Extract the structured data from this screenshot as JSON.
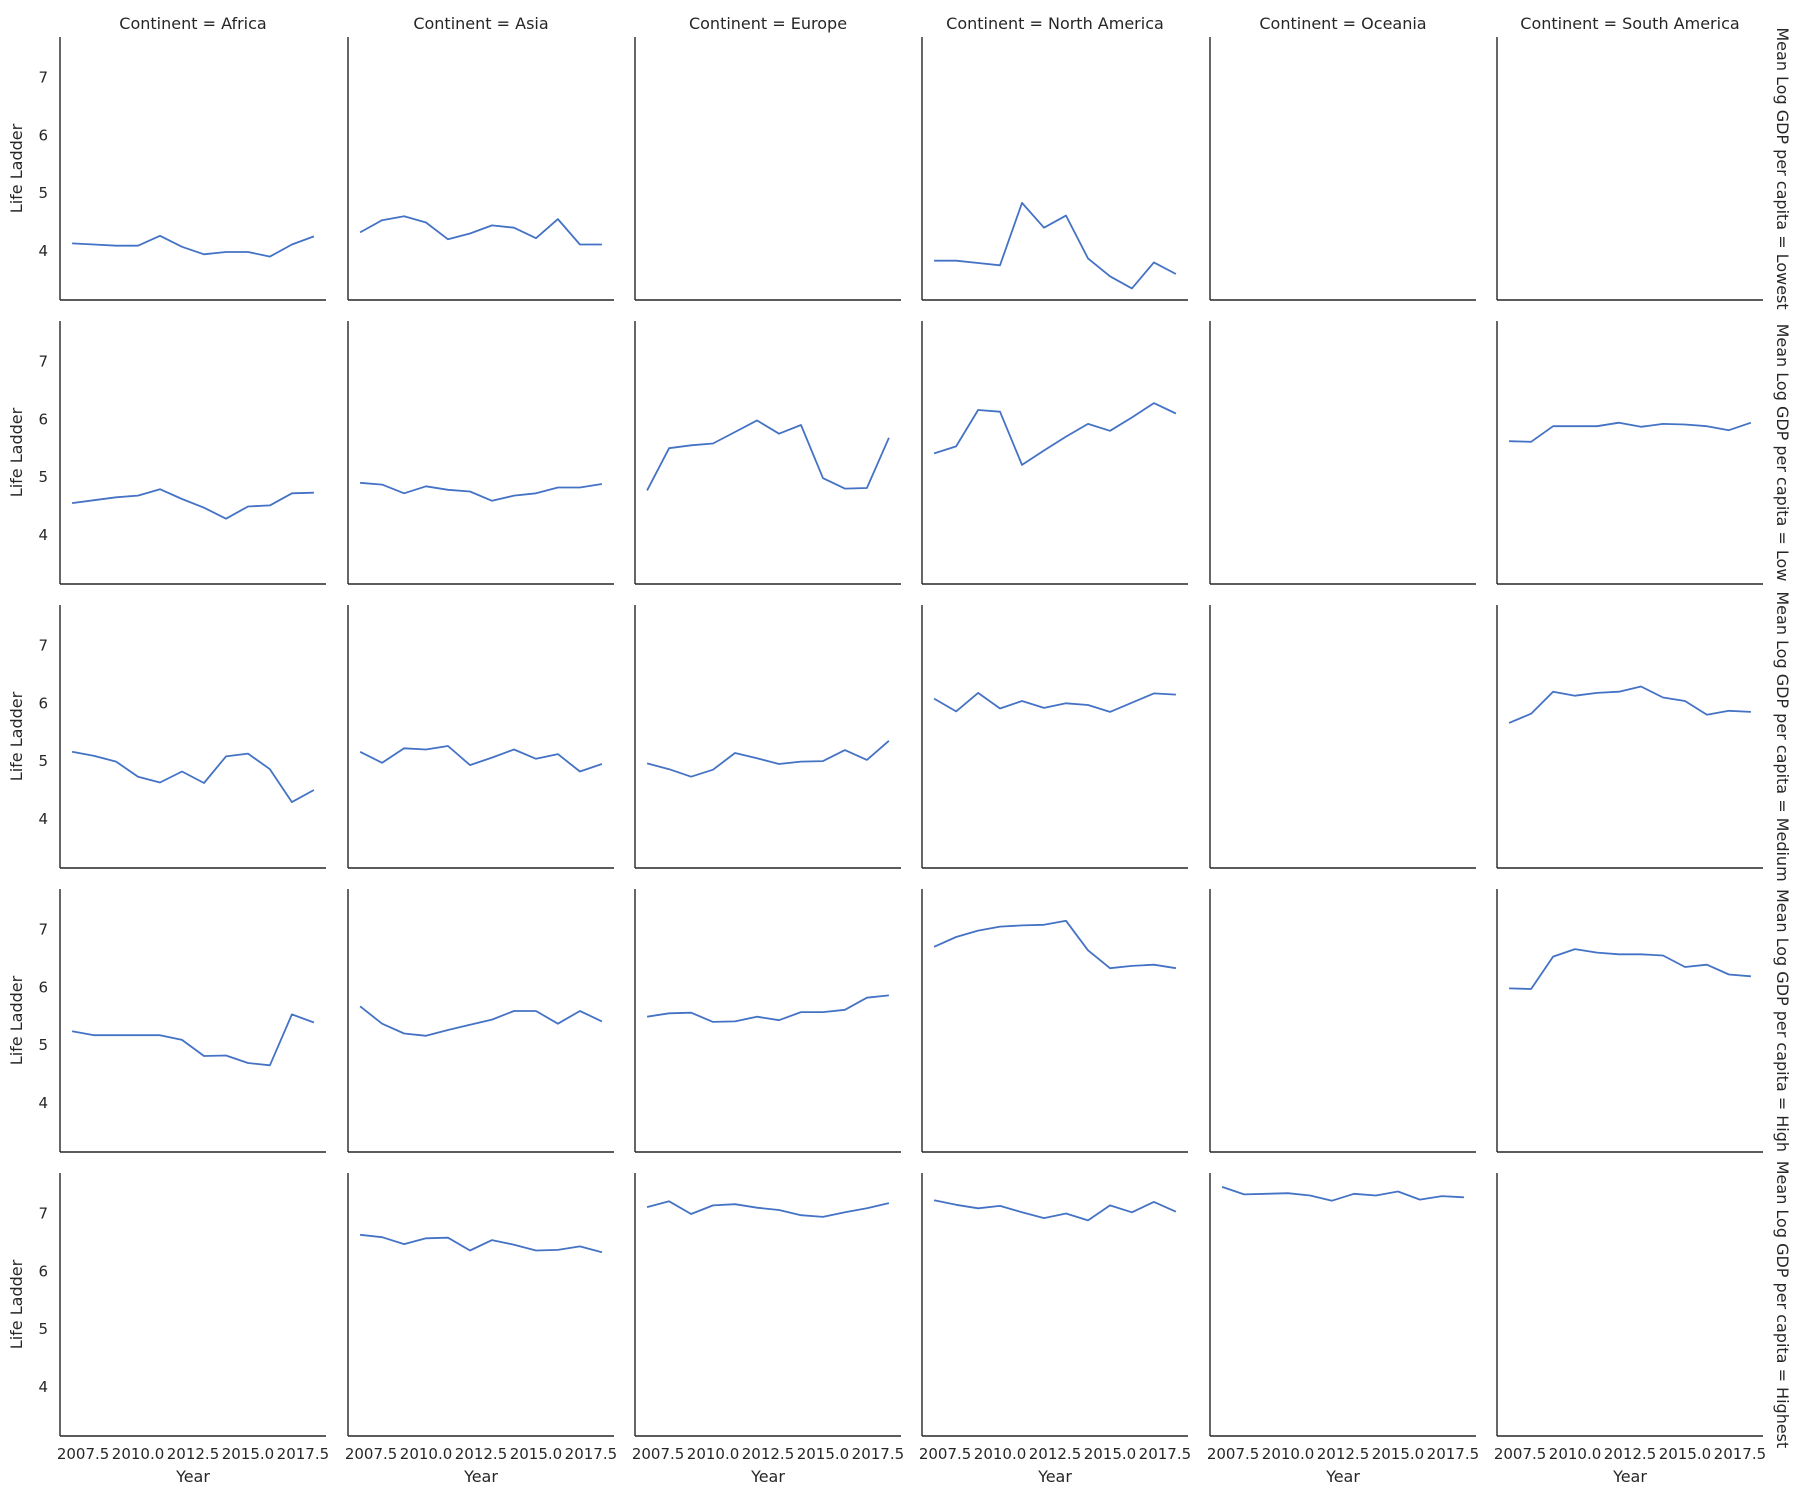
{
  "chart_data": {
    "type": "line",
    "title": "",
    "xlabel": "Year",
    "ylabel": "Life Ladder",
    "xlim": [
      2006.45,
      2018.55
    ],
    "ylim": [
      3.15,
      7.7
    ],
    "x_ticks": [
      2007.5,
      2010.0,
      2012.5,
      2015.0,
      2017.5
    ],
    "x_tick_labels": [
      "2007.5",
      "2010.0",
      "2012.5",
      "2015.0",
      "2017.5"
    ],
    "y_ticks": [
      4,
      5,
      6,
      7
    ],
    "y_tick_labels": [
      "4",
      "5",
      "6",
      "7"
    ],
    "grid": false,
    "line_color": "#4472c4",
    "columns": [
      "Continent = Africa",
      "Continent = Asia",
      "Continent = Europe",
      "Continent = North America",
      "Continent = Oceania",
      "Continent = South America"
    ],
    "rows": [
      "Mean Log GDP per capita = Lowest",
      "Mean Log GDP per capita = Low",
      "Mean Log GDP per capita = Medium",
      "Mean Log GDP per capita = High",
      "Mean Log GDP per capita = Highest"
    ],
    "x": [
      2007,
      2008,
      2009,
      2010,
      2011,
      2012,
      2013,
      2014,
      2015,
      2016,
      2017,
      2018
    ],
    "panels": [
      [
        [
          4.13,
          4.11,
          4.09,
          4.09,
          4.26,
          4.07,
          3.94,
          3.98,
          3.98,
          3.9,
          4.11,
          4.25
        ],
        [
          4.32,
          4.53,
          4.6,
          4.49,
          4.2,
          4.3,
          4.44,
          4.4,
          4.22,
          4.55,
          4.11,
          4.11
        ],
        null,
        [
          3.83,
          3.83,
          3.79,
          3.75,
          4.83,
          4.4,
          4.61,
          3.87,
          3.56,
          3.35,
          3.8,
          3.6
        ],
        null,
        null
      ],
      [
        [
          4.55,
          4.6,
          4.65,
          4.68,
          4.79,
          4.62,
          4.47,
          4.28,
          4.49,
          4.51,
          4.72,
          4.73
        ],
        [
          4.9,
          4.87,
          4.72,
          4.84,
          4.78,
          4.75,
          4.59,
          4.68,
          4.72,
          4.82,
          4.82,
          4.88
        ],
        [
          4.77,
          5.5,
          5.55,
          5.58,
          5.78,
          5.98,
          5.75,
          5.9,
          4.98,
          4.8,
          4.81,
          5.68
        ],
        [
          5.41,
          5.53,
          6.16,
          6.13,
          5.21,
          5.46,
          5.7,
          5.92,
          5.8,
          6.03,
          6.28,
          6.1
        ],
        null,
        [
          5.62,
          5.61,
          5.88,
          5.88,
          5.88,
          5.94,
          5.87,
          5.92,
          5.91,
          5.88,
          5.81,
          5.94
        ]
      ],
      [
        [
          5.16,
          5.09,
          4.99,
          4.73,
          4.63,
          4.82,
          4.62,
          5.08,
          5.13,
          4.86,
          4.29,
          4.5
        ],
        [
          5.16,
          4.97,
          5.22,
          5.2,
          5.26,
          4.93,
          5.06,
          5.2,
          5.04,
          5.12,
          4.82,
          4.95
        ],
        [
          4.96,
          4.86,
          4.73,
          4.85,
          5.14,
          5.05,
          4.95,
          4.99,
          5.0,
          5.19,
          5.02,
          5.35
        ],
        [
          6.08,
          5.86,
          6.18,
          5.91,
          6.04,
          5.92,
          6.0,
          5.97,
          5.85,
          6.01,
          6.17,
          6.15
        ],
        null,
        [
          5.66,
          5.82,
          6.2,
          6.13,
          6.18,
          6.2,
          6.29,
          6.1,
          6.04,
          5.8,
          5.87,
          5.85
        ]
      ],
      [
        [
          5.24,
          5.17,
          5.17,
          5.17,
          5.17,
          5.09,
          4.81,
          4.82,
          4.69,
          4.65,
          5.53,
          5.39
        ],
        [
          5.67,
          5.37,
          5.2,
          5.16,
          5.26,
          5.35,
          5.44,
          5.59,
          5.59,
          5.37,
          5.59,
          5.41
        ],
        [
          5.49,
          5.55,
          5.56,
          5.4,
          5.41,
          5.49,
          5.43,
          5.57,
          5.57,
          5.61,
          5.82,
          5.86
        ],
        [
          6.7,
          6.87,
          6.98,
          7.05,
          7.07,
          7.08,
          7.15,
          6.64,
          6.33,
          6.37,
          6.39,
          6.33
        ],
        null,
        [
          5.98,
          5.97,
          6.53,
          6.66,
          6.6,
          6.57,
          6.57,
          6.55,
          6.35,
          6.39,
          6.22,
          6.19
        ]
      ],
      [
        null,
        [
          6.63,
          6.59,
          6.47,
          6.57,
          6.58,
          6.36,
          6.54,
          6.46,
          6.36,
          6.37,
          6.43,
          6.33
        ],
        [
          7.11,
          7.21,
          6.99,
          7.14,
          7.16,
          7.1,
          7.06,
          6.97,
          6.94,
          7.02,
          7.09,
          7.18
        ],
        [
          7.23,
          7.15,
          7.09,
          7.13,
          7.02,
          6.92,
          7.0,
          6.88,
          7.14,
          7.02,
          7.2,
          7.03
        ],
        [
          7.46,
          7.33,
          7.34,
          7.35,
          7.31,
          7.22,
          7.34,
          7.31,
          7.38,
          7.24,
          7.3,
          7.28
        ],
        null
      ]
    ]
  }
}
